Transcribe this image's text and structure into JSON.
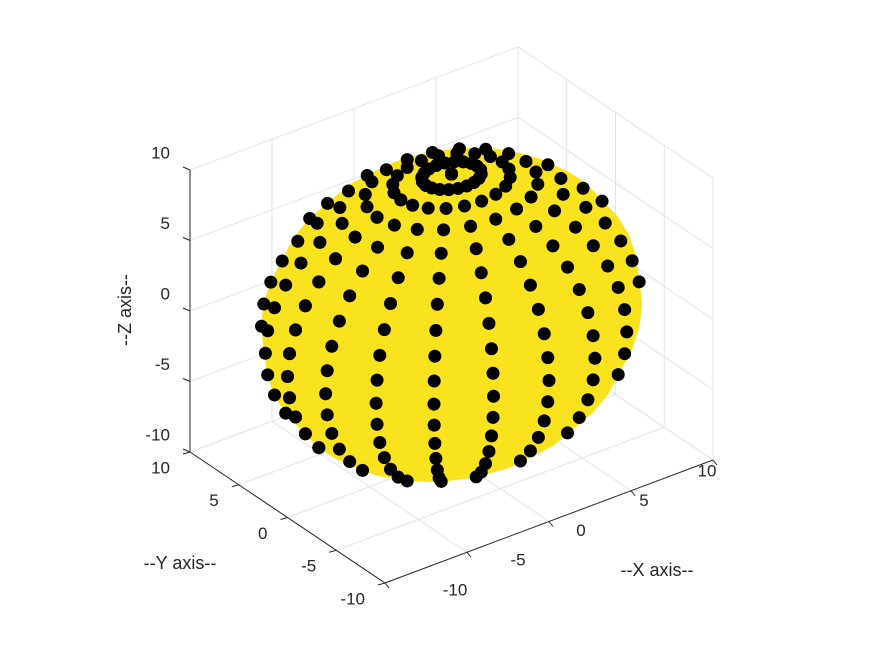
{
  "chart_data": {
    "type": "scatter3",
    "xlabel": "--X axis--",
    "ylabel": "--Y axis--",
    "zlabel": "--Z axis--",
    "xlim": [
      -10,
      10
    ],
    "ylim": [
      -10,
      10
    ],
    "zlim": [
      -10,
      10
    ],
    "xticks": [
      -10,
      -5,
      0,
      5,
      10
    ],
    "yticks": [
      -10,
      -5,
      0,
      5,
      10
    ],
    "zticks": [
      -10,
      -5,
      0,
      5,
      10
    ],
    "grid": true,
    "sphere": {
      "radius": 10,
      "segments": 20,
      "face_color": "#f9e21e",
      "marker_color": "#000000"
    }
  }
}
